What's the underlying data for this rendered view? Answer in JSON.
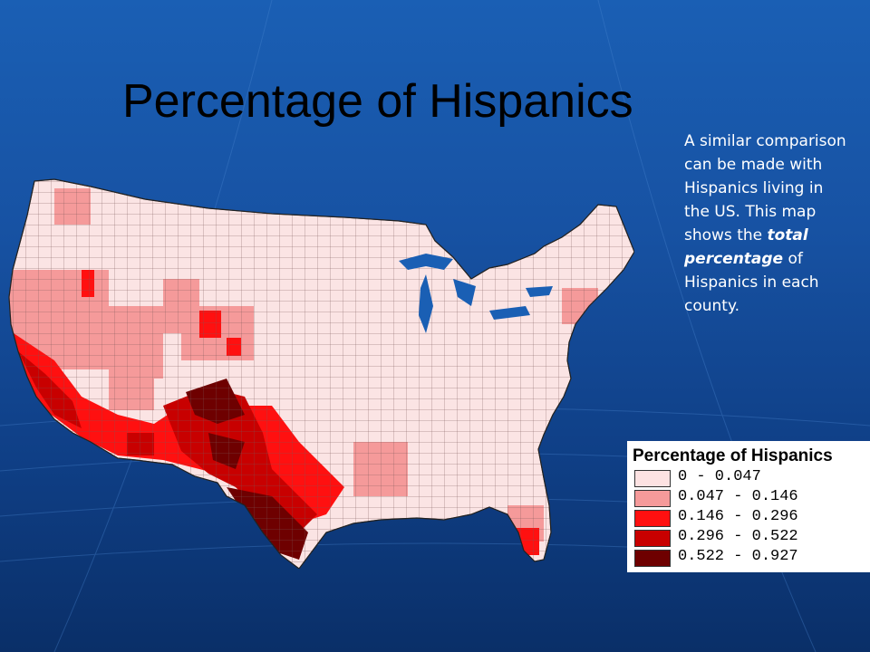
{
  "slide": {
    "title": "Percentage of Hispanics",
    "caption": {
      "part1": "A similar comparison can be made with Hispanics living in the US.  This map shows the ",
      "emphasis": "total percentage",
      "part2": " of Hispanics in each county."
    },
    "background_color": "#1a5fb4"
  },
  "map": {
    "region": "Contiguous United States, by county",
    "default_fill": "#fbe4e4",
    "legend": {
      "title": "Percentage of Hispanics",
      "classes": [
        {
          "label": "0 - 0.047",
          "color": "#fde2e2"
        },
        {
          "label": "0.047 - 0.146",
          "color": "#f59a9a"
        },
        {
          "label": "0.146 - 0.296",
          "color": "#ff1010"
        },
        {
          "label": "0.296 - 0.522",
          "color": "#c80000"
        },
        {
          "label": "0.522 - 0.927",
          "color": "#6e0000"
        }
      ]
    }
  }
}
